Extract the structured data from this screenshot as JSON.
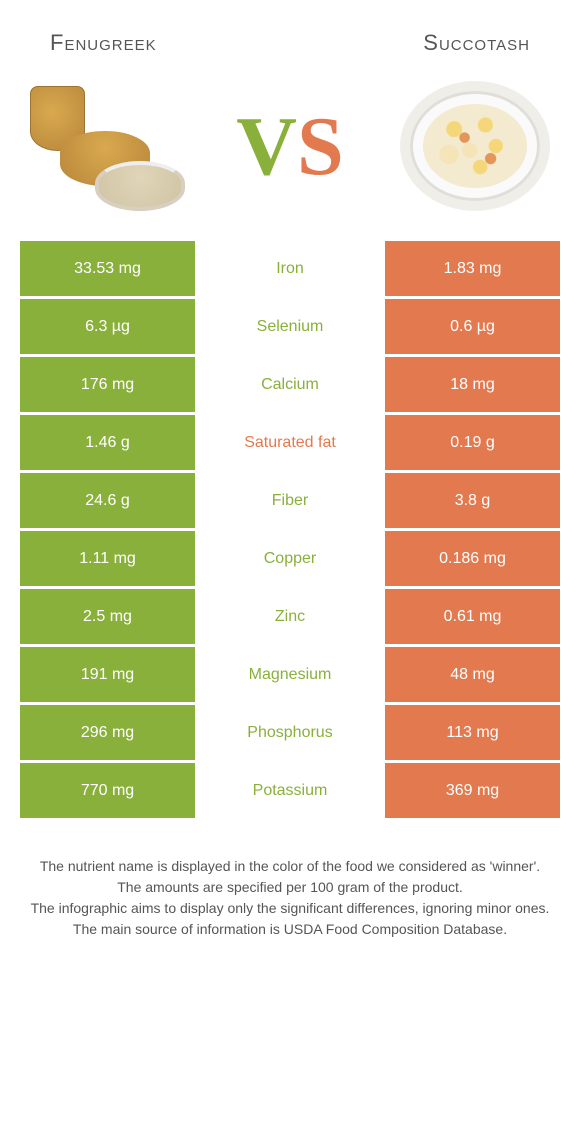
{
  "header": {
    "left_title": "Fenugreek",
    "right_title": "Succotash",
    "vs_v": "V",
    "vs_s": "S"
  },
  "colors": {
    "left": "#8ab03c",
    "right": "#e37a4f",
    "mid_text": "#888888",
    "background": "#ffffff"
  },
  "rows": [
    {
      "nutrient": "Iron",
      "left": "33.53 mg",
      "right": "1.83 mg",
      "winner": "left"
    },
    {
      "nutrient": "Selenium",
      "left": "6.3 µg",
      "right": "0.6 µg",
      "winner": "left"
    },
    {
      "nutrient": "Calcium",
      "left": "176 mg",
      "right": "18 mg",
      "winner": "left"
    },
    {
      "nutrient": "Saturated fat",
      "left": "1.46 g",
      "right": "0.19 g",
      "winner": "right"
    },
    {
      "nutrient": "Fiber",
      "left": "24.6 g",
      "right": "3.8 g",
      "winner": "left"
    },
    {
      "nutrient": "Copper",
      "left": "1.11 mg",
      "right": "0.186 mg",
      "winner": "left"
    },
    {
      "nutrient": "Zinc",
      "left": "2.5 mg",
      "right": "0.61 mg",
      "winner": "left"
    },
    {
      "nutrient": "Magnesium",
      "left": "191 mg",
      "right": "48 mg",
      "winner": "left"
    },
    {
      "nutrient": "Phosphorus",
      "left": "296 mg",
      "right": "113 mg",
      "winner": "left"
    },
    {
      "nutrient": "Potassium",
      "left": "770 mg",
      "right": "369 mg",
      "winner": "left"
    }
  ],
  "footnote": {
    "line1": "The nutrient name is displayed in the color of the food we considered as 'winner'.",
    "line2": "The amounts are specified per 100 gram of the product.",
    "line3": "The infographic aims to display only the significant differences, ignoring minor ones.",
    "line4": "The main source of information is USDA Food Composition Database."
  }
}
